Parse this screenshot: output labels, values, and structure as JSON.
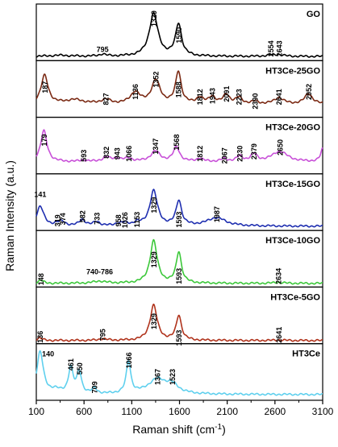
{
  "chart_data": {
    "type": "line",
    "xlabel": "Raman shift (cm",
    "xlabel_sup": "-1",
    "xlabel_tail": ")",
    "ylabel": "Raman Intensity (a.u.)",
    "xlim": [
      100,
      3100
    ],
    "xticks": [
      100,
      600,
      1100,
      1600,
      2100,
      2600,
      3100
    ],
    "grid": false,
    "panels": [
      {
        "name": "GO",
        "color": "#000000",
        "base": 0.05,
        "peaks": [
          [
            795,
            0.04,
            40
          ],
          [
            1329,
            0.82,
            55
          ],
          [
            1590,
            0.62,
            38
          ],
          [
            2554,
            0.02,
            60
          ],
          [
            2643,
            0.03,
            60
          ],
          [
            350,
            0.02,
            120
          ]
        ],
        "labels": [
          {
            "text": "795",
            "x": 795,
            "rot": 0,
            "y": 0.14
          },
          {
            "text": "1329",
            "x": 1329,
            "rot": -90,
            "y": 0.78
          },
          {
            "text": "1590",
            "x": 1590,
            "rot": -90,
            "y": 0.46
          },
          {
            "text": "2554",
            "x": 2554,
            "rot": -90,
            "y": 0.2
          },
          {
            "text": "2643",
            "x": 2643,
            "rot": -90,
            "y": 0.2
          }
        ]
      },
      {
        "name": "HT3Ce-25GO",
        "color": "#7b2a14",
        "base": 0.22,
        "peaks": [
          [
            187,
            0.55,
            45
          ],
          [
            827,
            0.08,
            60
          ],
          [
            1136,
            0.22,
            60
          ],
          [
            1352,
            0.45,
            55
          ],
          [
            1588,
            0.62,
            35
          ],
          [
            1812,
            0.12,
            40
          ],
          [
            1943,
            0.14,
            40
          ],
          [
            2091,
            0.18,
            40
          ],
          [
            2223,
            0.12,
            40
          ],
          [
            2390,
            0.05,
            40
          ],
          [
            2641,
            0.12,
            60
          ],
          [
            2952,
            0.2,
            50
          ],
          [
            500,
            0.08,
            120
          ]
        ],
        "labels": [
          {
            "text": "187",
            "x": 187,
            "rot": -90,
            "y": 0.55
          },
          {
            "text": "827",
            "x": 827,
            "rot": -90,
            "y": 0.32
          },
          {
            "text": "1136",
            "x": 1136,
            "rot": -90,
            "y": 0.46
          },
          {
            "text": "1352",
            "x": 1352,
            "rot": -90,
            "y": 0.7
          },
          {
            "text": "1588",
            "x": 1588,
            "rot": -90,
            "y": 0.5
          },
          {
            "text": "1812",
            "x": 1812,
            "rot": -90,
            "y": 0.36
          },
          {
            "text": "1943",
            "x": 1943,
            "rot": -90,
            "y": 0.38
          },
          {
            "text": "2091",
            "x": 2091,
            "rot": -90,
            "y": 0.42
          },
          {
            "text": "2223",
            "x": 2223,
            "rot": -90,
            "y": 0.36
          },
          {
            "text": "2390",
            "x": 2390,
            "rot": -90,
            "y": 0.28
          },
          {
            "text": "2641",
            "x": 2641,
            "rot": -90,
            "y": 0.36
          },
          {
            "text": "2952",
            "x": 2952,
            "rot": -90,
            "y": 0.46
          }
        ]
      },
      {
        "name": "HT3Ce-20GO",
        "color": "#c850d8",
        "base": 0.2,
        "peaks": [
          [
            179,
            0.6,
            40
          ],
          [
            593,
            0.03,
            40
          ],
          [
            832,
            0.08,
            50
          ],
          [
            943,
            0.06,
            50
          ],
          [
            1066,
            0.06,
            50
          ],
          [
            1347,
            0.2,
            60
          ],
          [
            1568,
            0.28,
            40
          ],
          [
            1812,
            0.06,
            40
          ],
          [
            2067,
            0.05,
            40
          ],
          [
            2230,
            0.1,
            40
          ],
          [
            2379,
            0.14,
            40
          ],
          [
            2650,
            0.2,
            100
          ],
          [
            3100,
            0.25,
            25
          ]
        ],
        "labels": [
          {
            "text": "179",
            "x": 179,
            "rot": -90,
            "y": 0.62
          },
          {
            "text": "593",
            "x": 593,
            "rot": -90,
            "y": 0.32
          },
          {
            "text": "832",
            "x": 832,
            "rot": -90,
            "y": 0.38
          },
          {
            "text": "943",
            "x": 943,
            "rot": -90,
            "y": 0.36
          },
          {
            "text": "1066",
            "x": 1066,
            "rot": -90,
            "y": 0.36
          },
          {
            "text": "1347",
            "x": 1347,
            "rot": -90,
            "y": 0.5
          },
          {
            "text": "1568",
            "x": 1568,
            "rot": -90,
            "y": 0.58
          },
          {
            "text": "1812",
            "x": 1812,
            "rot": -90,
            "y": 0.36
          },
          {
            "text": "2067",
            "x": 2067,
            "rot": -90,
            "y": 0.32
          },
          {
            "text": "2230",
            "x": 2230,
            "rot": -90,
            "y": 0.36
          },
          {
            "text": "2379",
            "x": 2379,
            "rot": -90,
            "y": 0.4
          },
          {
            "text": "2650",
            "x": 2650,
            "rot": -90,
            "y": 0.48
          }
        ]
      },
      {
        "name": "HT3Ce-15GO",
        "color": "#1f2fb0",
        "base": 0.05,
        "peaks": [
          [
            141,
            0.38,
            45
          ],
          [
            319,
            0.04,
            40
          ],
          [
            374,
            0.07,
            40
          ],
          [
            582,
            0.12,
            40
          ],
          [
            733,
            0.08,
            40
          ],
          [
            958,
            0.04,
            40
          ],
          [
            1026,
            0.05,
            40
          ],
          [
            1153,
            0.06,
            40
          ],
          [
            1329,
            0.68,
            48
          ],
          [
            1593,
            0.48,
            35
          ],
          [
            1987,
            0.16,
            120
          ]
        ],
        "labels": [
          {
            "text": "141",
            "x": 141,
            "rot": 0,
            "y": 0.62
          },
          {
            "text": "319",
            "x": 319,
            "rot": -90,
            "y": 0.16
          },
          {
            "text": "374",
            "x": 374,
            "rot": -90,
            "y": 0.19
          },
          {
            "text": "582",
            "x": 582,
            "rot": -90,
            "y": 0.24
          },
          {
            "text": "733",
            "x": 733,
            "rot": -90,
            "y": 0.2
          },
          {
            "text": "958",
            "x": 958,
            "rot": -90,
            "y": 0.16
          },
          {
            "text": "1026",
            "x": 1026,
            "rot": -90,
            "y": 0.17
          },
          {
            "text": "1153",
            "x": 1153,
            "rot": -90,
            "y": 0.18
          },
          {
            "text": "1329",
            "x": 1329,
            "rot": -90,
            "y": 0.46
          },
          {
            "text": "1593",
            "x": 1593,
            "rot": -90,
            "y": 0.18
          },
          {
            "text": "1987",
            "x": 1987,
            "rot": -90,
            "y": 0.28
          }
        ]
      },
      {
        "name": "HT3Ce-10GO",
        "color": "#3cc83a",
        "base": 0.04,
        "peaks": [
          [
            148,
            0.06,
            30
          ],
          [
            763,
            0.04,
            80
          ],
          [
            1329,
            0.82,
            45
          ],
          [
            1593,
            0.6,
            33
          ],
          [
            2634,
            0.02,
            60
          ]
        ],
        "labels": [
          {
            "text": "148",
            "x": 148,
            "rot": -90,
            "y": 0.12
          },
          {
            "text": "740-786",
            "x": 763,
            "rot": 0,
            "y": 0.22
          },
          {
            "text": "1329",
            "x": 1329,
            "rot": -90,
            "y": 0.5
          },
          {
            "text": "1593",
            "x": 1593,
            "rot": -90,
            "y": 0.18
          },
          {
            "text": "2634",
            "x": 2634,
            "rot": -90,
            "y": 0.18
          }
        ]
      },
      {
        "name": "HT3Ce-5GO",
        "color": "#b0331c",
        "base": 0.03,
        "peaks": [
          [
            136,
            0.05,
            30
          ],
          [
            795,
            0.03,
            50
          ],
          [
            1329,
            0.68,
            45
          ],
          [
            1593,
            0.48,
            33
          ],
          [
            2641,
            0.01,
            60
          ]
        ],
        "labels": [
          {
            "text": "136",
            "x": 136,
            "rot": -90,
            "y": 0.1
          },
          {
            "text": "795",
            "x": 795,
            "rot": -90,
            "y": 0.14
          },
          {
            "text": "1329",
            "x": 1329,
            "rot": -90,
            "y": 0.4
          },
          {
            "text": "1593",
            "x": 1593,
            "rot": -90,
            "y": 0.08
          },
          {
            "text": "2641",
            "x": 2641,
            "rot": -90,
            "y": 0.14
          }
        ]
      },
      {
        "name": "HT3Ce",
        "color": "#5fd0ee",
        "base": 0.08,
        "peaks": [
          [
            140,
            0.82,
            40
          ],
          [
            461,
            0.5,
            30
          ],
          [
            550,
            0.42,
            28
          ],
          [
            709,
            0.1,
            30
          ],
          [
            1066,
            0.62,
            28
          ],
          [
            1367,
            0.28,
            120
          ],
          [
            1523,
            0.15,
            80
          ],
          [
            300,
            0.08,
            60
          ]
        ],
        "labels": [
          {
            "text": "140",
            "x": 140,
            "rot": 0,
            "y": 0.82,
            "dx": 10
          },
          {
            "text": "461",
            "x": 461,
            "rot": -90,
            "y": 0.66
          },
          {
            "text": "550",
            "x": 550,
            "rot": -90,
            "y": 0.58
          },
          {
            "text": "709",
            "x": 709,
            "rot": -90,
            "y": 0.22
          },
          {
            "text": "1066",
            "x": 1066,
            "rot": -90,
            "y": 0.74
          },
          {
            "text": "1367",
            "x": 1367,
            "rot": -90,
            "y": 0.42
          },
          {
            "text": "1523",
            "x": 1523,
            "rot": -90,
            "y": 0.42
          }
        ]
      }
    ]
  }
}
